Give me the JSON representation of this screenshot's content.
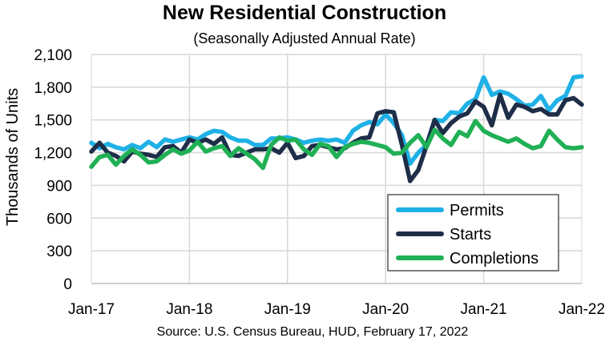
{
  "chart_data": {
    "type": "line",
    "title": "New Residential Construction",
    "subtitle": "(Seasonally Adjusted Annual Rate)",
    "ylabel": "Thousands of Units",
    "xlabel": "",
    "source": "Source:  U.S. Census Bureau, HUD, February 17, 2022",
    "ylim": [
      0,
      2100
    ],
    "yticks": [
      0,
      300,
      600,
      900,
      1200,
      1500,
      1800,
      2100
    ],
    "ytick_labels": [
      "0",
      "300",
      "600",
      "900",
      "1,200",
      "1,500",
      "1,800",
      "2,100"
    ],
    "xlim": [
      0,
      60
    ],
    "xticks": [
      0,
      12,
      24,
      36,
      48,
      60
    ],
    "xtick_labels": [
      "Jan-17",
      "Jan-18",
      "Jan-19",
      "Jan-20",
      "Jan-21",
      "Jan-22"
    ],
    "grid": true,
    "legend_position": "bottom-right",
    "series": [
      {
        "name": "Permits",
        "color": "#1fb1e6",
        "values": [
          1290,
          1240,
          1280,
          1250,
          1230,
          1270,
          1240,
          1300,
          1250,
          1320,
          1300,
          1320,
          1340,
          1320,
          1370,
          1400,
          1390,
          1340,
          1310,
          1310,
          1270,
          1270,
          1330,
          1330,
          1340,
          1320,
          1290,
          1310,
          1320,
          1310,
          1320,
          1290,
          1400,
          1450,
          1480,
          1460,
          1550,
          1470,
          1360,
          1100,
          1200,
          1270,
          1500,
          1490,
          1570,
          1560,
          1650,
          1690,
          1890,
          1730,
          1760,
          1740,
          1690,
          1630,
          1640,
          1720,
          1590,
          1680,
          1720,
          1890,
          1900
        ]
      },
      {
        "name": "Starts",
        "color": "#1e2e48",
        "values": [
          1210,
          1290,
          1200,
          1170,
          1120,
          1210,
          1190,
          1180,
          1160,
          1250,
          1260,
          1200,
          1320,
          1290,
          1320,
          1280,
          1340,
          1180,
          1170,
          1200,
          1230,
          1230,
          1240,
          1200,
          1290,
          1150,
          1170,
          1260,
          1270,
          1250,
          1230,
          1240,
          1290,
          1330,
          1340,
          1560,
          1580,
          1570,
          1270,
          940,
          1040,
          1260,
          1500,
          1380,
          1470,
          1530,
          1560,
          1670,
          1620,
          1450,
          1730,
          1520,
          1640,
          1620,
          1580,
          1600,
          1550,
          1550,
          1680,
          1700,
          1640
        ]
      },
      {
        "name": "Completions",
        "color": "#20b055",
        "values": [
          1070,
          1160,
          1180,
          1090,
          1170,
          1230,
          1180,
          1110,
          1120,
          1180,
          1230,
          1190,
          1220,
          1300,
          1210,
          1240,
          1260,
          1170,
          1240,
          1190,
          1140,
          1060,
          1270,
          1340,
          1310,
          1320,
          1230,
          1180,
          1280,
          1260,
          1160,
          1250,
          1280,
          1300,
          1290,
          1270,
          1250,
          1190,
          1200,
          1290,
          1360,
          1250,
          1410,
          1330,
          1270,
          1390,
          1350,
          1490,
          1400,
          1360,
          1330,
          1300,
          1330,
          1280,
          1240,
          1260,
          1400,
          1320,
          1250,
          1240,
          1250
        ]
      }
    ]
  }
}
